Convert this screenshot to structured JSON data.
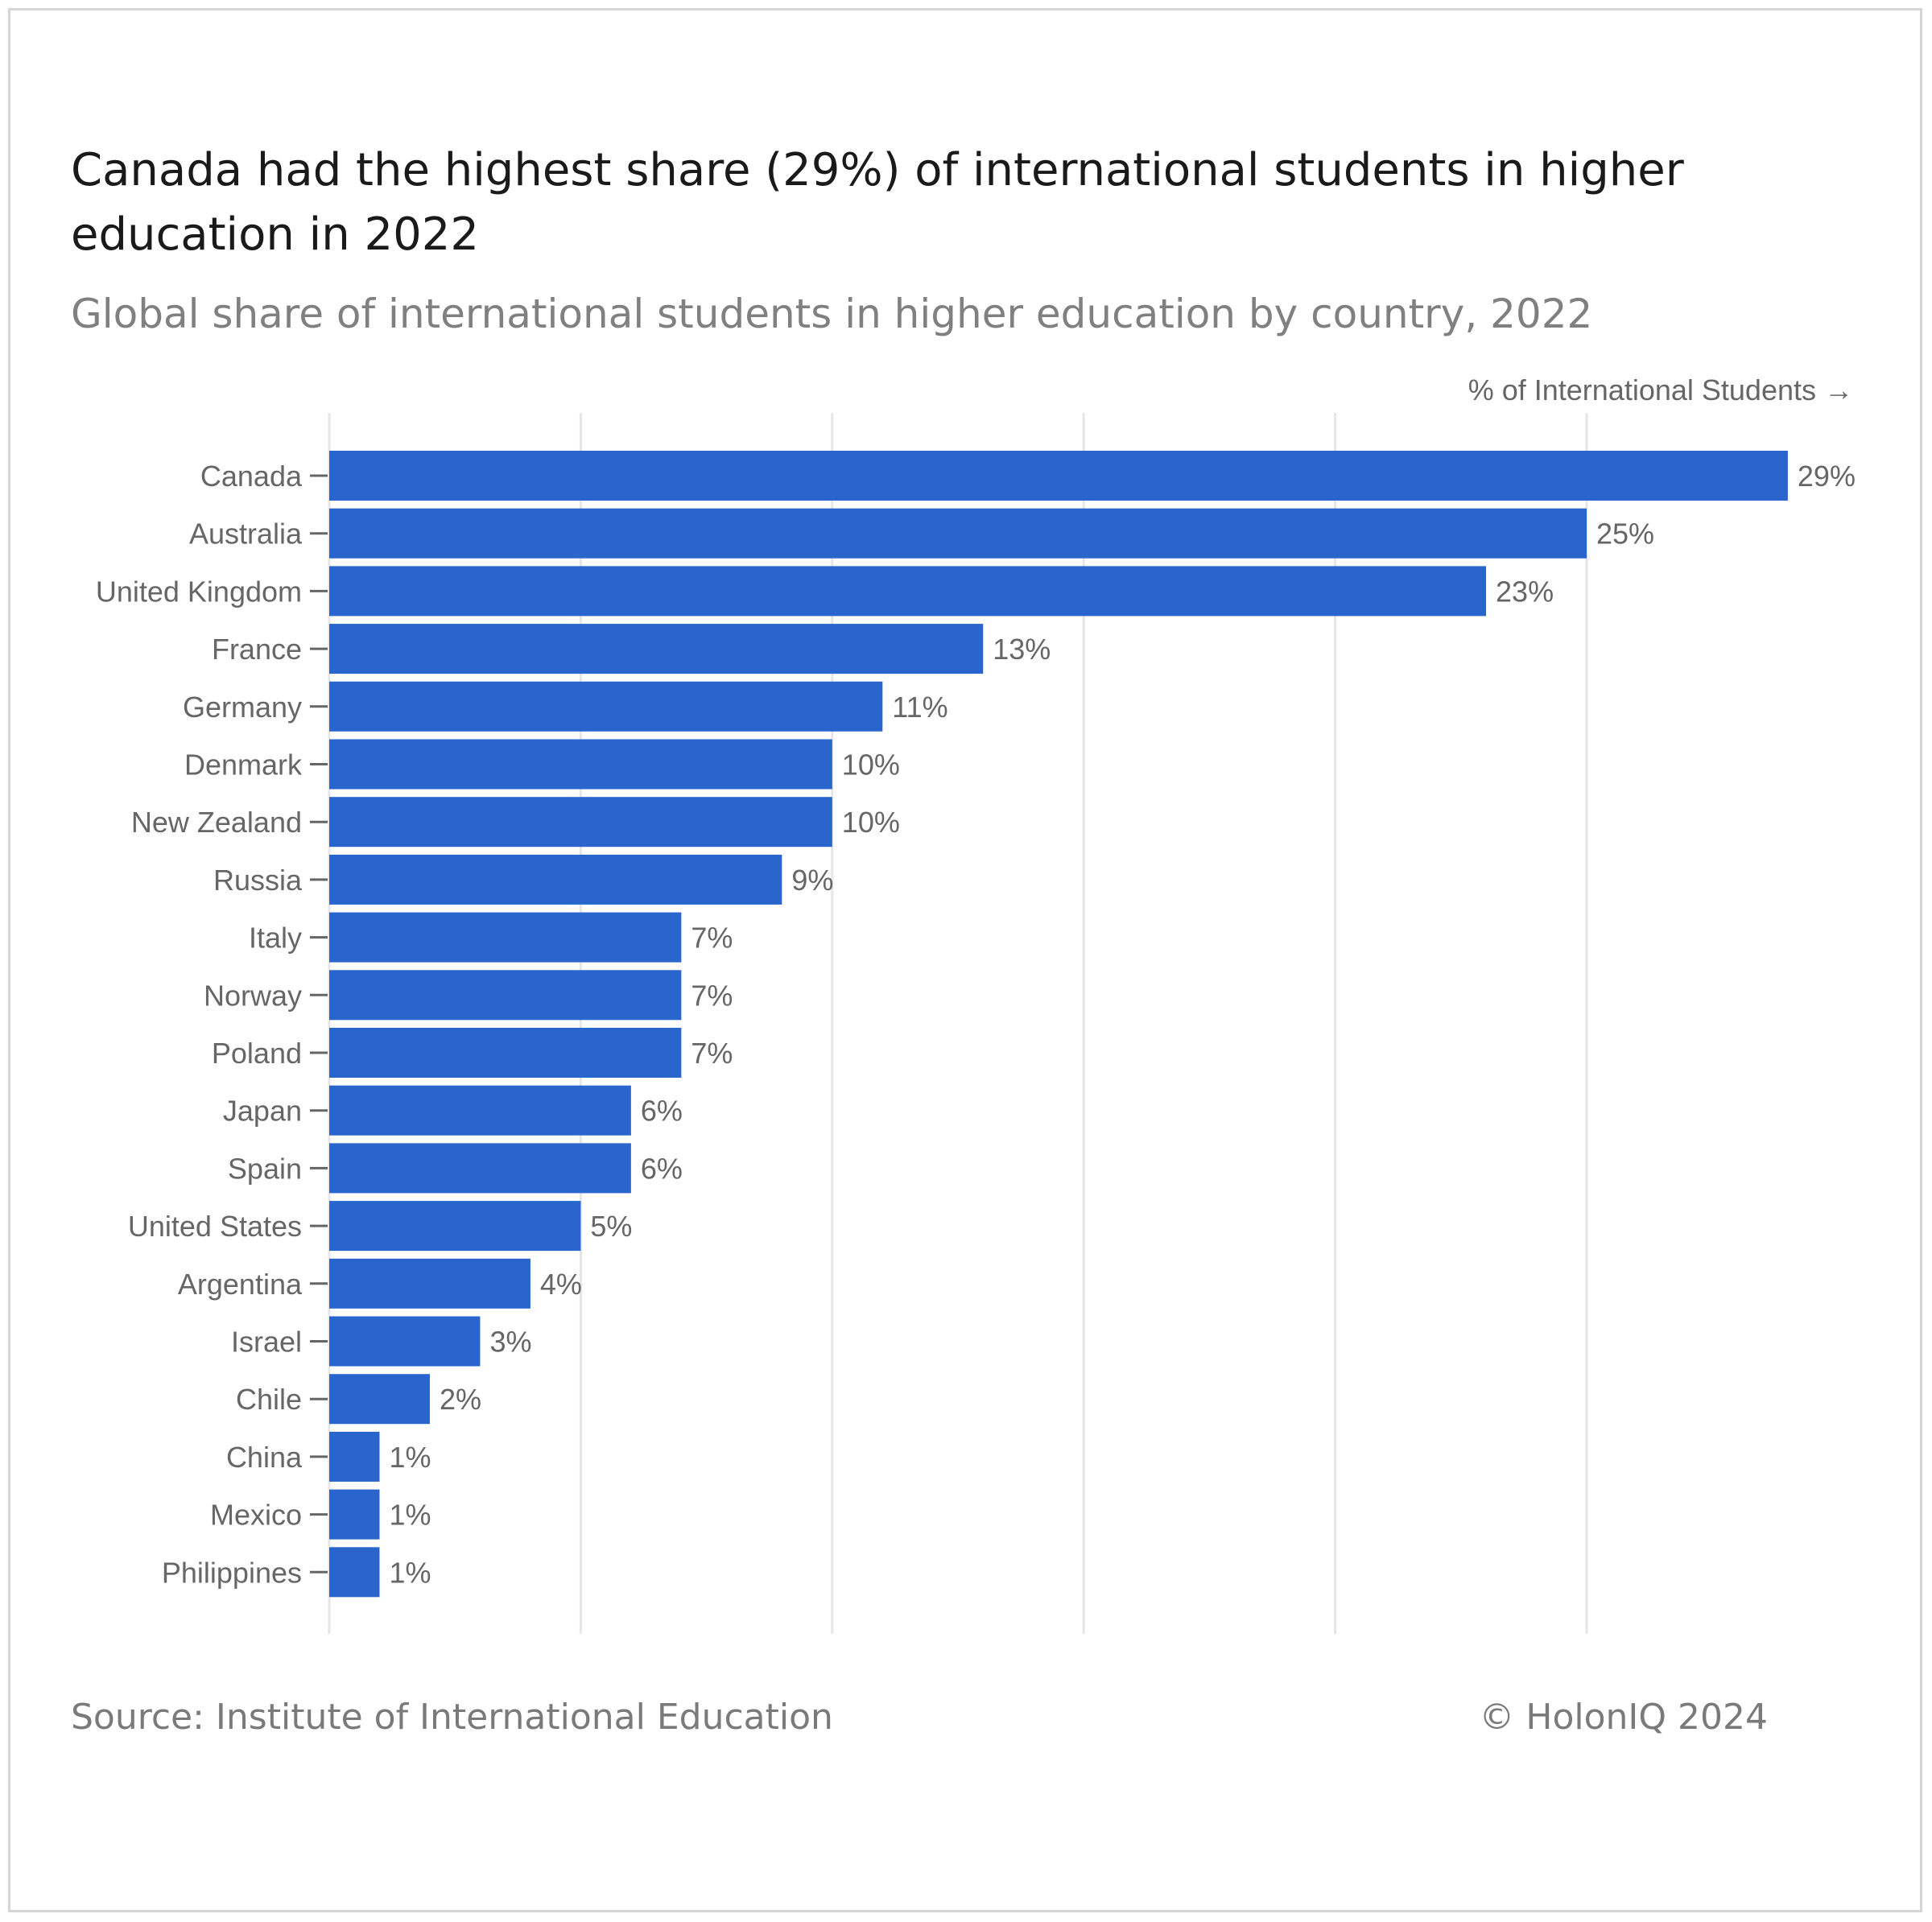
{
  "header": {
    "title": "Canada had the highest share (29%) of international students in higher education in 2022",
    "subtitle": "Global share of international students in higher education by country, 2022"
  },
  "footer": {
    "source": "Source: Institute of International Education",
    "copyright": "© HolonIQ 2024"
  },
  "colors": {
    "bar": "#2965cc",
    "grid": "#e6e6e6",
    "label": "#666666"
  },
  "chart_data": {
    "type": "bar",
    "orientation": "horizontal",
    "xlabel": "% of International Students →",
    "ylabel": "",
    "xlim": [
      0,
      30
    ],
    "grid": true,
    "categories": [
      "Canada",
      "Australia",
      "United Kingdom",
      "France",
      "Germany",
      "Denmark",
      "New Zealand",
      "Russia",
      "Italy",
      "Norway",
      "Poland",
      "Japan",
      "Spain",
      "United States",
      "Argentina",
      "Israel",
      "Chile",
      "China",
      "Mexico",
      "Philippines"
    ],
    "values": [
      29,
      25,
      23,
      13,
      11,
      10,
      10,
      9,
      7,
      7,
      7,
      6,
      6,
      5,
      4,
      3,
      2,
      1,
      1,
      1
    ],
    "data_labels": [
      "29%",
      "25%",
      "23%",
      "13%",
      "11%",
      "10%",
      "10%",
      "9%",
      "7%",
      "7%",
      "7%",
      "6%",
      "6%",
      "5%",
      "4%",
      "3%",
      "2%",
      "1%",
      "1%",
      "1%"
    ]
  }
}
